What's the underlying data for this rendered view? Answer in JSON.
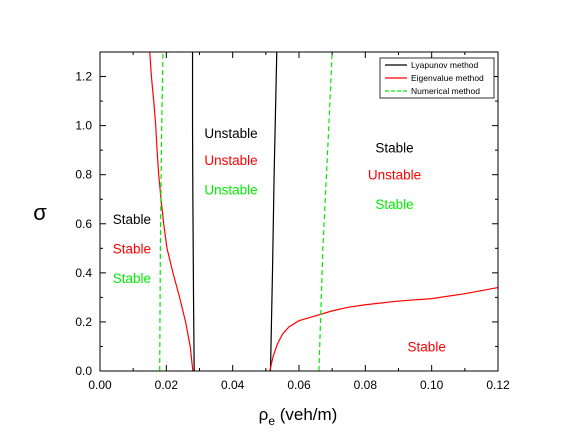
{
  "chart_data": {
    "type": "line",
    "xlabel": "ρ",
    "xlabel_sub": "e",
    "xlabel_unit": " (veh/m)",
    "ylabel": "σ",
    "xlim": [
      0.0,
      0.12
    ],
    "ylim": [
      0.0,
      1.3
    ],
    "xticks": [
      0.0,
      0.02,
      0.04,
      0.06,
      0.08,
      0.1,
      0.12
    ],
    "xtick_labels": [
      "0.00",
      "0.02",
      "0.04",
      "0.06",
      "0.08",
      "0.10",
      "0.12"
    ],
    "yticks": [
      0.0,
      0.2,
      0.4,
      0.6,
      0.8,
      1.0,
      1.2
    ],
    "ytick_labels": [
      "0.0",
      "0.2",
      "0.4",
      "0.6",
      "0.8",
      "1.0",
      "1.2"
    ],
    "grid": false,
    "legend_placement": "top-right",
    "series": [
      {
        "name": "Lyapunov method",
        "color": "#000000",
        "dash": "solid",
        "segments": [
          [
            [
              0.0284,
              0.0
            ],
            [
              0.0282,
              0.3
            ],
            [
              0.028,
              0.7
            ],
            [
              0.0279,
              1.0
            ],
            [
              0.0279,
              1.3
            ]
          ],
          [
            [
              0.0514,
              0.0
            ],
            [
              0.052,
              0.4
            ],
            [
              0.0525,
              0.8
            ],
            [
              0.0533,
              1.3
            ]
          ]
        ]
      },
      {
        "name": "Eigenvalue method",
        "color": "#ff0000",
        "dash": "solid",
        "segments": [
          [
            [
              0.015,
              1.3
            ],
            [
              0.0155,
              1.2
            ],
            [
              0.0162,
              1.1
            ],
            [
              0.0168,
              1.0
            ],
            [
              0.0172,
              0.9
            ],
            [
              0.0177,
              0.8
            ],
            [
              0.0184,
              0.7
            ],
            [
              0.0192,
              0.6
            ],
            [
              0.0202,
              0.5
            ],
            [
              0.022,
              0.4
            ],
            [
              0.024,
              0.3
            ],
            [
              0.0258,
              0.2
            ],
            [
              0.0272,
              0.1
            ],
            [
              0.028,
              0.0
            ]
          ],
          [
            [
              0.0512,
              0.0
            ],
            [
              0.0522,
              0.06
            ],
            [
              0.0535,
              0.11
            ],
            [
              0.055,
              0.15
            ],
            [
              0.057,
              0.18
            ],
            [
              0.06,
              0.205
            ],
            [
              0.065,
              0.225
            ],
            [
              0.07,
              0.245
            ],
            [
              0.075,
              0.26
            ],
            [
              0.08,
              0.27
            ],
            [
              0.09,
              0.285
            ],
            [
              0.1,
              0.295
            ],
            [
              0.11,
              0.315
            ],
            [
              0.12,
              0.34
            ]
          ]
        ]
      },
      {
        "name": "Numerical method",
        "color": "#00ee00",
        "dash": "dashed",
        "segments": [
          [
            [
              0.018,
              0.0
            ],
            [
              0.0182,
              0.5
            ],
            [
              0.0186,
              1.0
            ],
            [
              0.019,
              1.3
            ]
          ],
          [
            [
              0.066,
              0.0
            ],
            [
              0.0672,
              0.5
            ],
            [
              0.069,
              1.0
            ],
            [
              0.07,
              1.3
            ]
          ]
        ]
      }
    ],
    "annotations": [
      {
        "text": "Unstable",
        "x": 0.0395,
        "y": 0.97,
        "color": "#000000"
      },
      {
        "text": "Unstable",
        "x": 0.0395,
        "y": 0.86,
        "color": "#ff0000"
      },
      {
        "text": "Unstable",
        "x": 0.0395,
        "y": 0.74,
        "color": "#00ee00"
      },
      {
        "text": "Stable",
        "x": 0.0096,
        "y": 0.62,
        "color": "#000000"
      },
      {
        "text": "Stable",
        "x": 0.0096,
        "y": 0.5,
        "color": "#ff0000"
      },
      {
        "text": "Stable",
        "x": 0.0096,
        "y": 0.38,
        "color": "#00ee00"
      },
      {
        "text": "Stable",
        "x": 0.0888,
        "y": 0.91,
        "color": "#000000"
      },
      {
        "text": "Unstable",
        "x": 0.0888,
        "y": 0.8,
        "color": "#ff0000"
      },
      {
        "text": "Stable",
        "x": 0.0888,
        "y": 0.68,
        "color": "#00ee00"
      },
      {
        "text": "Stable",
        "x": 0.0985,
        "y": 0.1,
        "color": "#ff0000"
      }
    ]
  }
}
